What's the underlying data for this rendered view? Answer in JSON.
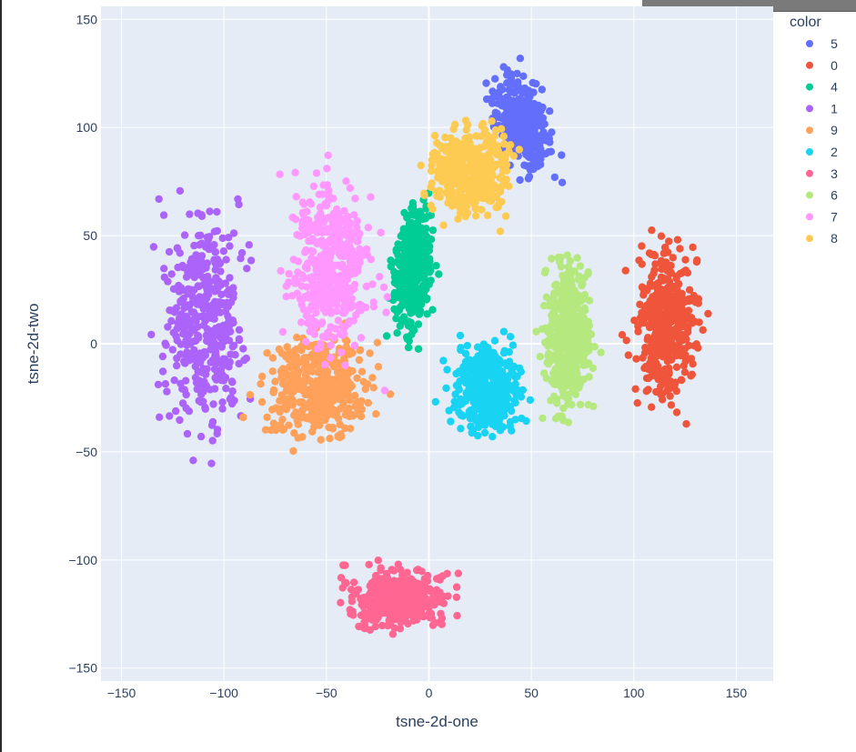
{
  "chart_data": {
    "type": "scatter",
    "title": "",
    "xlabel": "tsne-2d-one",
    "ylabel": "tsne-2d-two",
    "xlim": [
      -160,
      168
    ],
    "ylim": [
      -156,
      156
    ],
    "xticks": [
      -150,
      -100,
      -50,
      0,
      50,
      100,
      150
    ],
    "xtick_labels": [
      "−150",
      "−100",
      "−50",
      "0",
      "50",
      "100",
      "150"
    ],
    "yticks": [
      -150,
      -100,
      -50,
      0,
      50,
      100,
      150
    ],
    "ytick_labels": [
      "−150",
      "−100",
      "−50",
      "0",
      "50",
      "100",
      "150"
    ],
    "grid": true,
    "legend": {
      "title": "color",
      "position": "right"
    },
    "plot_background": "#e5ecf6",
    "series": [
      {
        "name": "5",
        "color": "#636efa",
        "centroid": [
          45,
          102
        ],
        "spread": [
          11,
          19
        ],
        "tilt": -0.2
      },
      {
        "name": "0",
        "color": "#ef553b",
        "centroid": [
          115,
          8
        ],
        "spread": [
          13,
          30
        ],
        "tilt": 0.0
      },
      {
        "name": "4",
        "color": "#00cc96",
        "centroid": [
          -8,
          35
        ],
        "spread": [
          8,
          25
        ],
        "tilt": 0.1
      },
      {
        "name": "1",
        "color": "#ab63fa",
        "centroid": [
          -110,
          10
        ],
        "spread": [
          17,
          42
        ],
        "tilt": 0.0
      },
      {
        "name": "9",
        "color": "#ffa15a",
        "centroid": [
          -55,
          -20
        ],
        "spread": [
          22,
          22
        ],
        "tilt": 0.0
      },
      {
        "name": "2",
        "color": "#19d3f3",
        "centroid": [
          28,
          -20
        ],
        "spread": [
          14,
          18
        ],
        "tilt": 0.0
      },
      {
        "name": "3",
        "color": "#ff6692",
        "centroid": [
          -15,
          -118
        ],
        "spread": [
          22,
          12
        ],
        "tilt": 0.0
      },
      {
        "name": "6",
        "color": "#b6e880",
        "centroid": [
          68,
          5
        ],
        "spread": [
          10,
          30
        ],
        "tilt": 0.0
      },
      {
        "name": "7",
        "color": "#ff97ff",
        "centroid": [
          -48,
          35
        ],
        "spread": [
          18,
          33
        ],
        "tilt": 0.0
      },
      {
        "name": "8",
        "color": "#fecb52",
        "centroid": [
          20,
          80
        ],
        "spread": [
          17,
          18
        ],
        "tilt": 0.0
      }
    ]
  }
}
